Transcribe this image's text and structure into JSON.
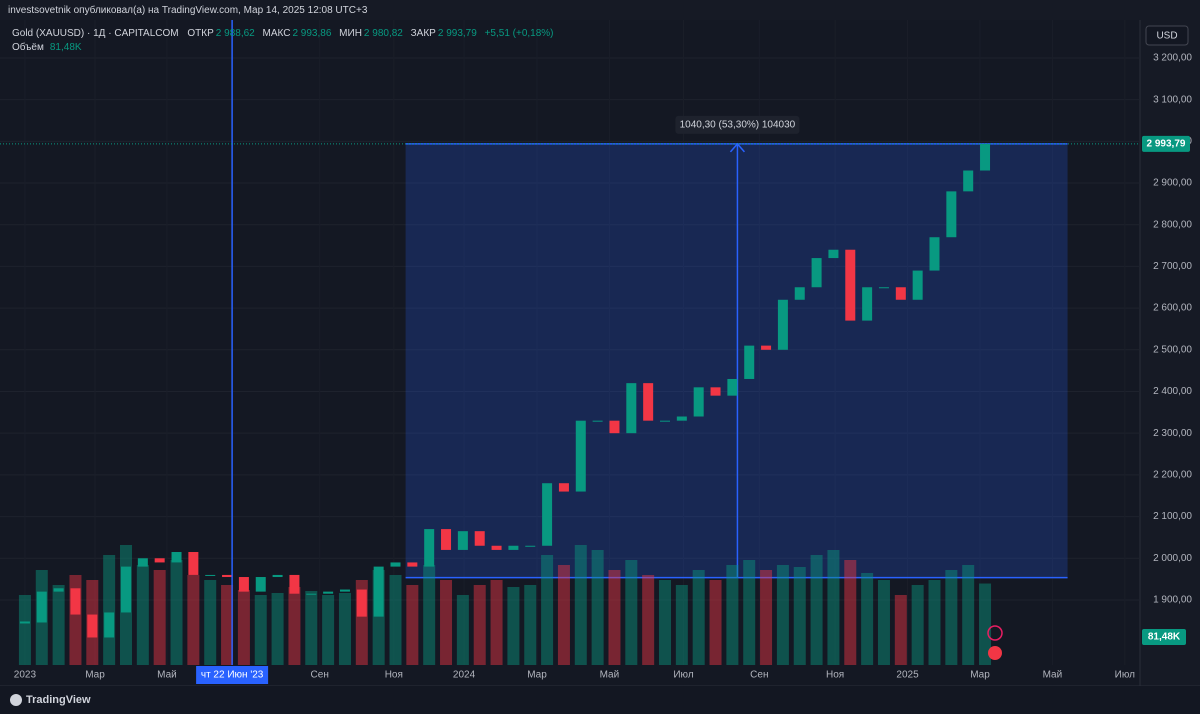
{
  "header": {
    "publisher": "investsovetnik опубликовал(а) на TradingView.com, Мар 14, 2025 12:08 UTC+3"
  },
  "legend": {
    "symbol": "Gold (XAUUSD) · 1Д · CAPITALCOM",
    "open_label": "ОТКР",
    "open": "2 988,62",
    "high_label": "МАКС",
    "high": "2 993,86",
    "low_label": "МИН",
    "low": "2 980,82",
    "close_label": "ЗАКР",
    "close": "2 993,79",
    "change": "+5,51 (+0,18%)",
    "volume_label": "Объём",
    "volume": "81,48K"
  },
  "currency": "USD",
  "footer": {
    "brand": "TradingView"
  },
  "chart_data": {
    "type": "candlestick",
    "xlim": [
      -1.48,
      66.2
    ],
    "xticks": [
      {
        "value": 0,
        "label": "2023"
      },
      {
        "value": 4.16,
        "label": "Мар"
      },
      {
        "value": 8.43,
        "label": "Май"
      },
      {
        "value": 17.5,
        "label": "Сен"
      },
      {
        "value": 21.9,
        "label": "Ноя"
      },
      {
        "value": 26.07,
        "label": "2024"
      },
      {
        "value": 30.4,
        "label": "Мар"
      },
      {
        "value": 34.7,
        "label": "Май"
      },
      {
        "value": 39.1,
        "label": "Июл"
      },
      {
        "value": 43.6,
        "label": "Сен"
      },
      {
        "value": 48.1,
        "label": "Ноя"
      },
      {
        "value": 52.4,
        "label": "2025"
      },
      {
        "value": 56.7,
        "label": "Мар"
      },
      {
        "value": 61.0,
        "label": "Май"
      },
      {
        "value": 65.3,
        "label": "Июл"
      }
    ],
    "ylim": [
      1744,
      3279
    ],
    "yticks": [
      {
        "value": 1900,
        "label": "1 900,00"
      },
      {
        "value": 2000,
        "label": "2 000,00"
      },
      {
        "value": 2100,
        "label": "2 100,00"
      },
      {
        "value": 2200,
        "label": "2 200,00"
      },
      {
        "value": 2300,
        "label": "2 300,00"
      },
      {
        "value": 2400,
        "label": "2 400,00"
      },
      {
        "value": 2500,
        "label": "2 500,00"
      },
      {
        "value": 2600,
        "label": "2 600,00"
      },
      {
        "value": 2700,
        "label": "2 700,00"
      },
      {
        "value": 2800,
        "label": "2 800,00"
      },
      {
        "value": 2900,
        "label": "2 900,00"
      },
      {
        "value": 3000,
        "label": "3 000,00"
      },
      {
        "value": 3100,
        "label": "3 100,00"
      },
      {
        "value": 3200,
        "label": "3 200,00"
      }
    ],
    "up_color": "#089981",
    "down_color": "#f23645",
    "series": [
      {
        "name": "Gold (XAUUSD)",
        "values": [
          1846,
          1920,
          1928,
          1865,
          1810,
          1870,
          1980,
          2000,
          1990,
          2015,
          1960,
          1960,
          1955,
          1920,
          1955,
          1960,
          1915,
          1915,
          1920,
          1925,
          1860,
          1980,
          1990,
          1980,
          2070,
          2020,
          2065,
          2030,
          2020,
          2030,
          2030,
          2180,
          2160,
          2330,
          2330,
          2300,
          2420,
          2330,
          2330,
          2340,
          2410,
          2390,
          2430,
          2510,
          2500,
          2620,
          2650,
          2720,
          2740,
          2570,
          2650,
          2650,
          2620,
          2690,
          2770,
          2880,
          2930,
          2993.79
        ]
      }
    ],
    "volume": {
      "name": "Объём",
      "values": [
        70,
        95,
        80,
        90,
        85,
        110,
        120,
        100,
        95,
        105,
        90,
        85,
        80,
        75,
        70,
        72,
        78,
        74,
        70,
        72,
        85,
        95,
        90,
        80,
        100,
        85,
        70,
        80,
        85,
        78,
        80,
        110,
        100,
        120,
        115,
        95,
        105,
        90,
        85,
        80,
        95,
        85,
        100,
        105,
        95,
        100,
        98,
        110,
        115,
        105,
        92,
        85,
        70,
        80,
        85,
        95,
        100,
        81.48
      ]
    },
    "last_price": {
      "value": 2993.79,
      "label": "2 993,79"
    },
    "last_volume": {
      "value": 81.48,
      "label": "81,48K"
    },
    "crosshair": {
      "x": 12.3,
      "label": "чт 22 Июн '23"
    },
    "measure": {
      "label": "1040,30 (53,30%) 104030",
      "x_start": 22.6,
      "x_end": 61.9,
      "low": 1953.49,
      "high": 2993.79,
      "arrow_x": 42.3
    }
  }
}
